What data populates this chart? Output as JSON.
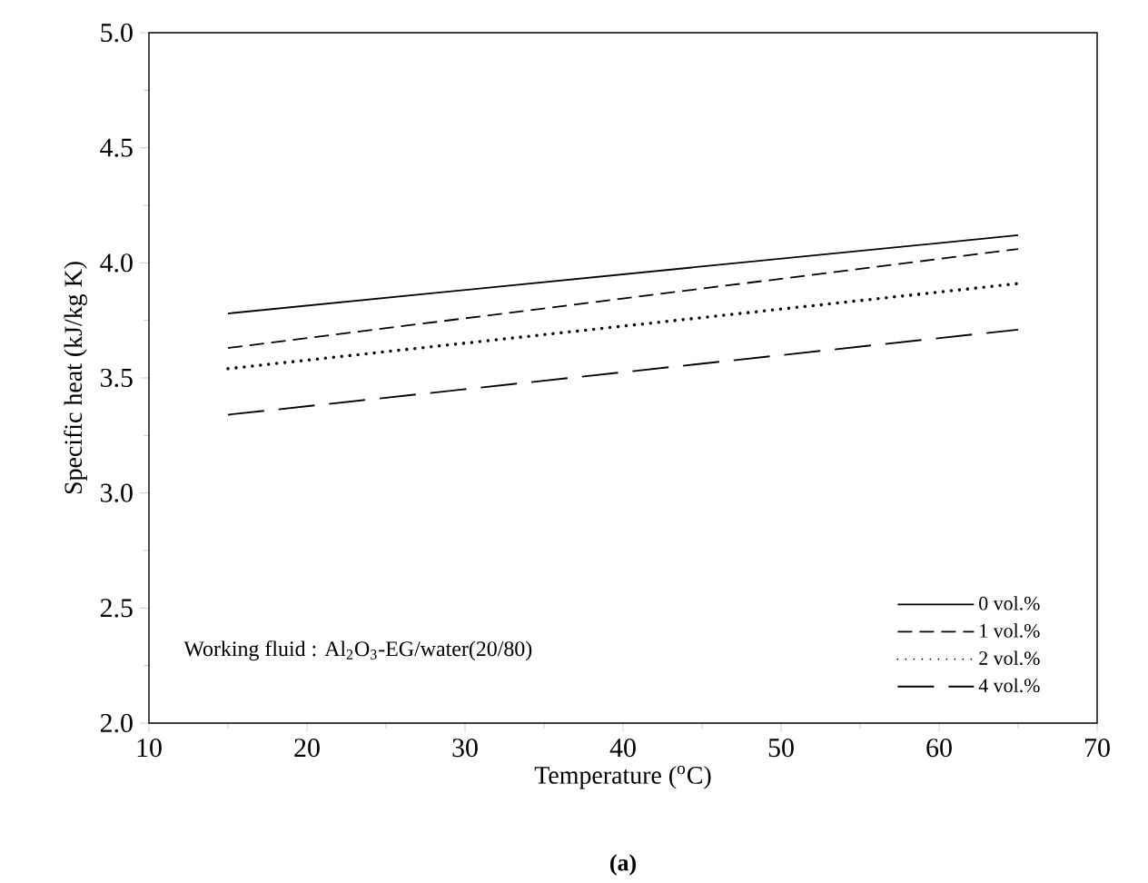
{
  "chart_data": {
    "type": "line",
    "xlabel": "Temperature ($^{o}$C)",
    "ylabel": "Specific heat (kJ/kg K)",
    "annotations": [
      "Working fluid : Al$_{2}$O$_{3}$-EG/water(20/80)",
      "**(a)**"
    ],
    "x": [
      15,
      65
    ],
    "series": [
      {
        "name": "0 vol.%",
        "color": "#000000",
        "line_style": "solid",
        "values": [
          3.78,
          4.12
        ]
      },
      {
        "name": "1 vol.%",
        "color": "#000000",
        "line_style": "dashed",
        "values": [
          3.63,
          4.06
        ]
      },
      {
        "name": "2 vol.%",
        "color": "#000000",
        "line_style": "dotted",
        "values": [
          3.54,
          3.91
        ]
      },
      {
        "name": "4 vol.%",
        "color": "#000000",
        "line_style": "dashed",
        "values": [
          3.34,
          3.71
        ]
      }
    ],
    "xlim": [
      10,
      70
    ],
    "xticks": [
      10,
      20,
      30,
      40,
      50,
      60,
      70
    ],
    "ylim": [
      2.0,
      5.0
    ],
    "yticks": [
      {
        "value": 2.0,
        "label": "2.0"
      },
      {
        "value": 2.5,
        "label": "2.5"
      },
      {
        "value": 3.0,
        "label": "3.0"
      },
      {
        "value": 3.5,
        "label": "3.5"
      },
      {
        "value": 4.0,
        "label": "4.0"
      },
      {
        "value": 4.5,
        "label": "4.5"
      },
      {
        "value": 5.0,
        "label": "5.0"
      }
    ],
    "grid": false,
    "legend": "bottom right",
    "marker": "none"
  }
}
